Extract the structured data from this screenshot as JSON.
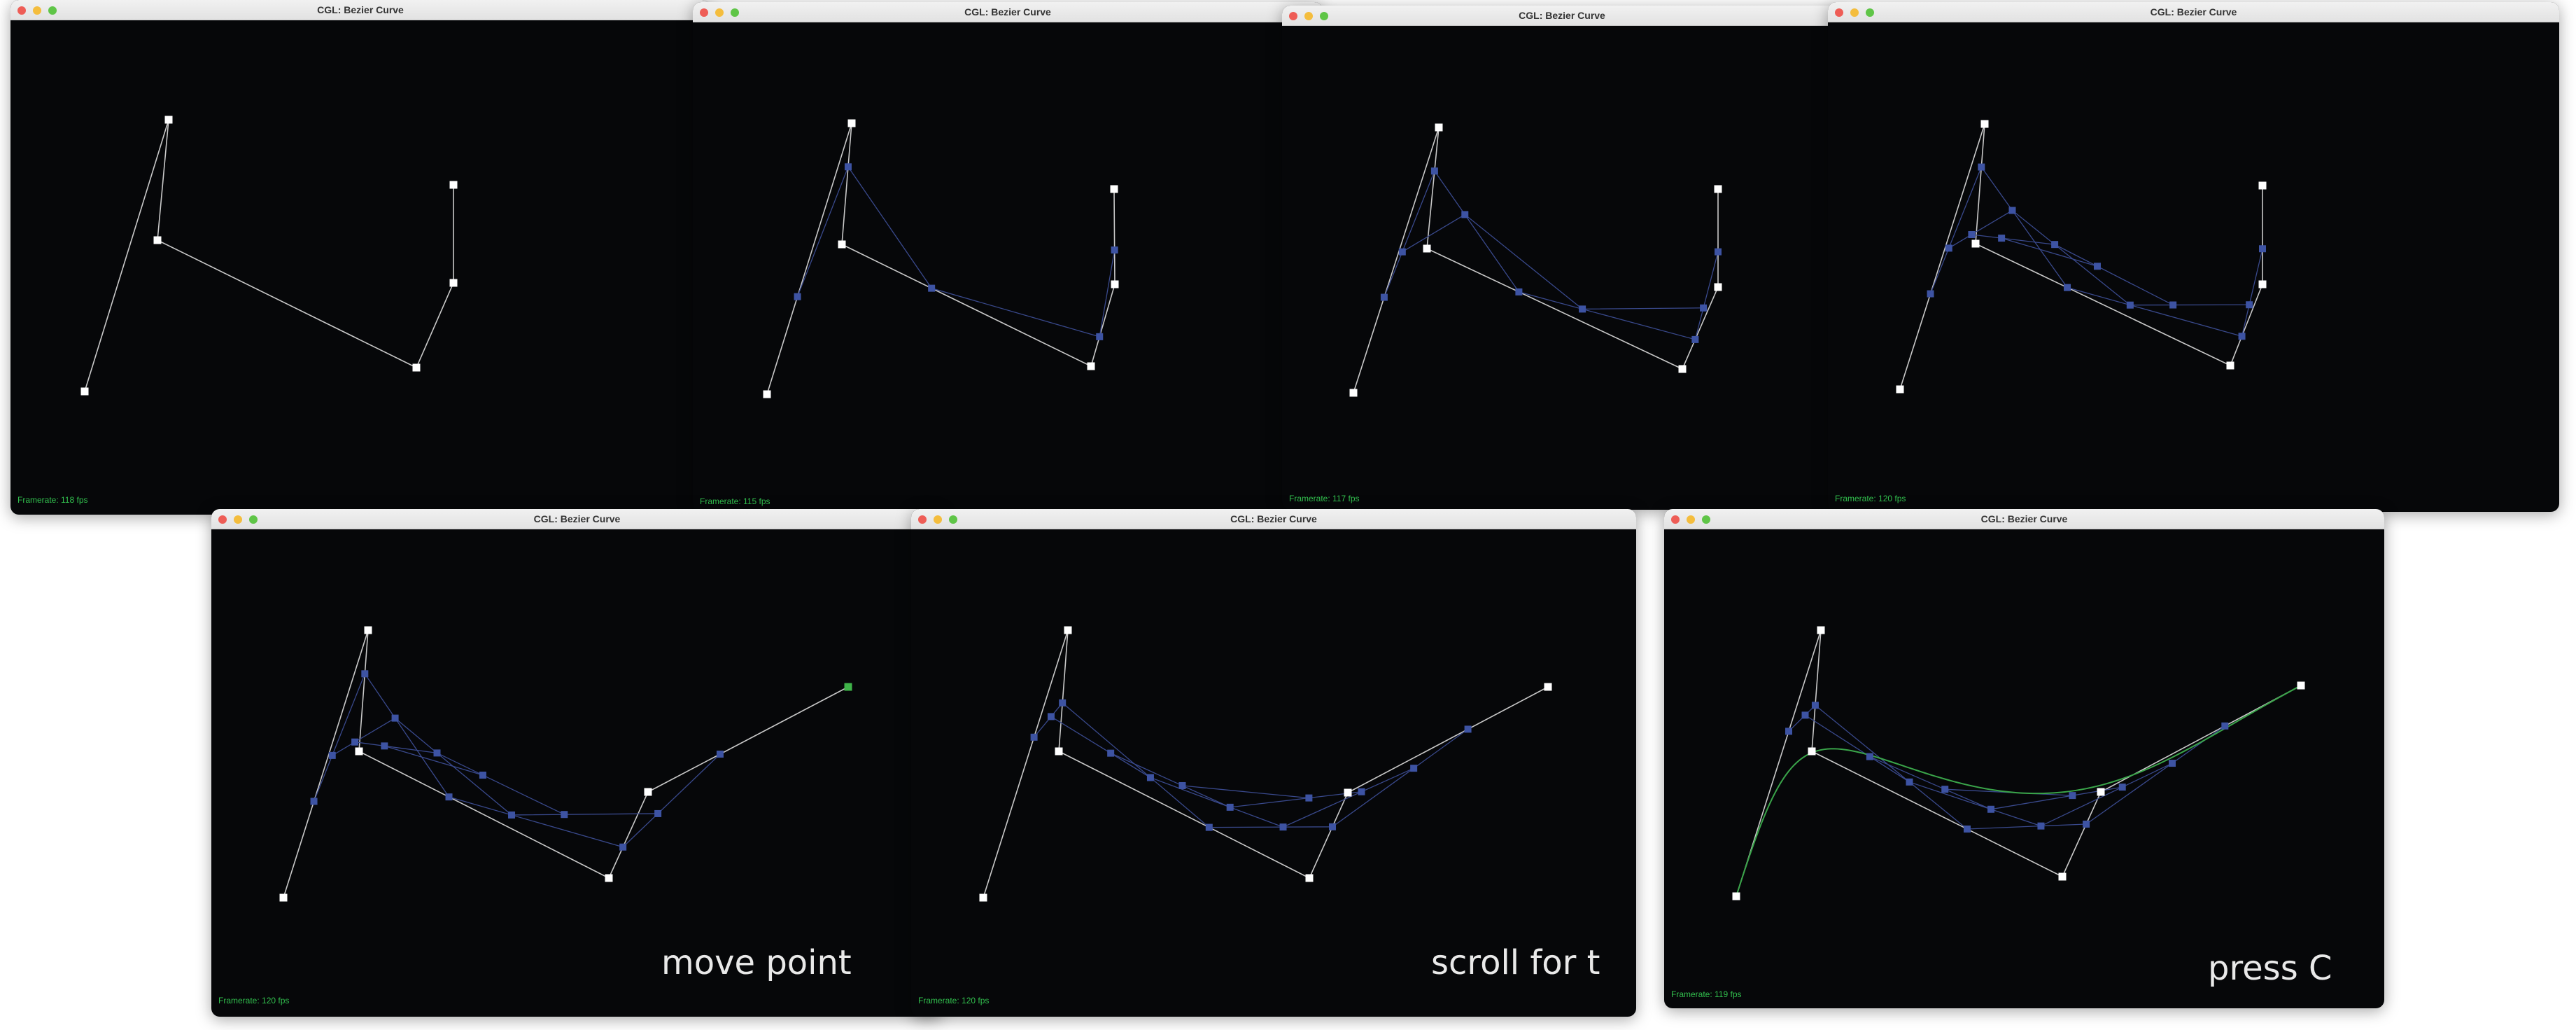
{
  "colors": {
    "control_point": "#ffffff",
    "control_line": "#c9c9c9",
    "intermediate_point": "#3d53a3",
    "intermediate_line": "#39498c",
    "selected_point": "#3fb449",
    "curve": "#3aa54a",
    "framerate_text": "#32c04e",
    "window_bg": "#060709"
  },
  "icons": [
    "close-button",
    "minimize-button",
    "zoom-button"
  ],
  "windows": [
    {
      "title": "CGL: Bezier Curve",
      "framerate": "Framerate: 118 fps",
      "caption": ""
    },
    {
      "title": "CGL: Bezier Curve",
      "framerate": "Framerate: 115 fps",
      "caption": ""
    },
    {
      "title": "CGL: Bezier Curve",
      "framerate": "Framerate: 117 fps",
      "caption": ""
    },
    {
      "title": "CGL: Bezier Curve",
      "framerate": "Framerate: 120 fps",
      "caption": ""
    },
    {
      "title": "CGL: Bezier Curve",
      "framerate": "Framerate: 120 fps",
      "caption": "move point"
    },
    {
      "title": "CGL: Bezier Curve",
      "framerate": "Framerate: 120 fps",
      "caption": "scroll for t"
    },
    {
      "title": "CGL: Bezier Curve",
      "framerate": "Framerate: 119 fps",
      "caption": "press C"
    }
  ]
}
